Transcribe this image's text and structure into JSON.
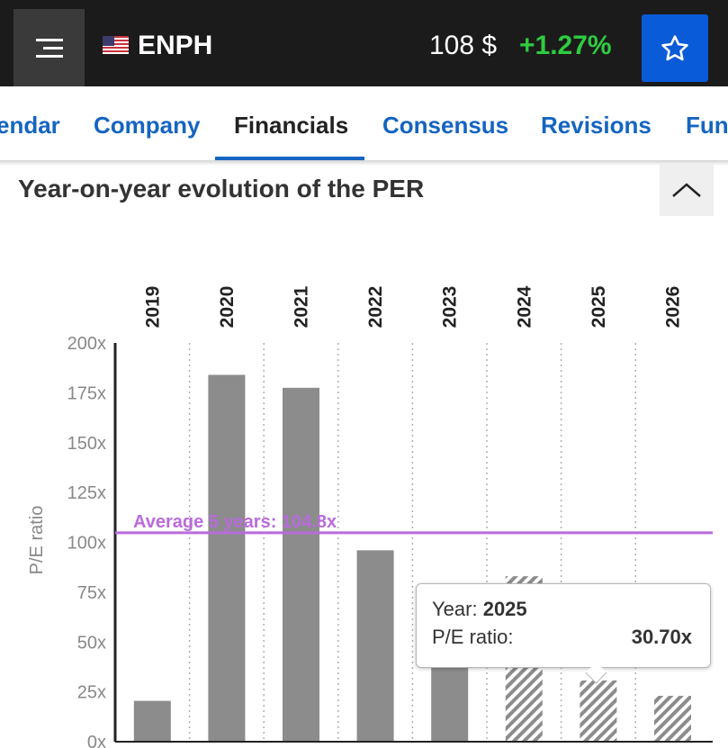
{
  "header": {
    "ticker": "ENPH",
    "price": "108 $",
    "change": "+1.27%",
    "menu_icon": "hamburger-icon",
    "flag_icon": "us-flag-icon",
    "star_icon": "star-icon",
    "colors": {
      "bar": "#1b1b1b",
      "change": "#2ecc40",
      "star_button": "#0a5bd8"
    }
  },
  "tabs": [
    {
      "label": "endar",
      "active": false
    },
    {
      "label": "Company",
      "active": false
    },
    {
      "label": "Financials",
      "active": true
    },
    {
      "label": "Consensus",
      "active": false
    },
    {
      "label": "Revisions",
      "active": false
    },
    {
      "label": "Fun",
      "active": false
    }
  ],
  "section": {
    "title": "Year-on-year evolution of the PER",
    "collapse_icon": "chevron-up-icon"
  },
  "chart_data": {
    "type": "bar",
    "categories": [
      "2019",
      "2020",
      "2021",
      "2022",
      "2023",
      "2024",
      "2025",
      "2026"
    ],
    "values": [
      20.5,
      184,
      177.5,
      96,
      39,
      83,
      30.7,
      23
    ],
    "estimated": [
      false,
      false,
      false,
      false,
      false,
      true,
      true,
      true
    ],
    "ylabel": "P/E ratio",
    "ylim": [
      0,
      200
    ],
    "yticks": [
      0,
      25,
      50,
      75,
      100,
      125,
      150,
      175,
      200
    ],
    "ytick_suffix": "x",
    "average": {
      "label": "Average 5 years: 104.8x",
      "value": 104.8
    },
    "grid": "vertical dotted",
    "colors": {
      "bar": "#8c8c8c",
      "average": "#b96bdc",
      "grid": "#b0b0b0"
    }
  },
  "tooltip": {
    "year_label": "Year:",
    "year_value": "2025",
    "metric_label": "P/E ratio:",
    "metric_value": "30.70x"
  }
}
